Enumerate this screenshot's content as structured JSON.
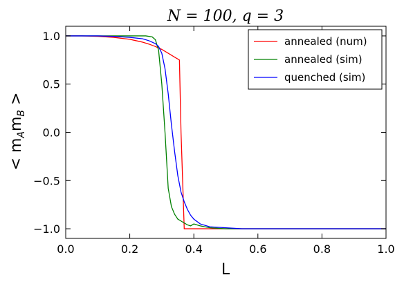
{
  "chart_data": {
    "type": "line",
    "title": "N = 100, q = 3",
    "xlabel": "L",
    "ylabel": "< m_A m_B >",
    "ylabel_parts": [
      "< m",
      "A",
      "m",
      "B",
      " >"
    ],
    "xlim": [
      0.0,
      1.0
    ],
    "ylim": [
      -1.1,
      1.1
    ],
    "xticks": [
      0.0,
      0.2,
      0.4,
      0.6,
      0.8,
      1.0
    ],
    "xtick_labels": [
      "0.0",
      "0.2",
      "0.4",
      "0.6",
      "0.8",
      "1.0"
    ],
    "yticks": [
      -1.0,
      -0.5,
      0.0,
      0.5,
      1.0
    ],
    "ytick_labels": [
      "−1.0",
      "−0.5",
      "0.0",
      "0.5",
      "1.0"
    ],
    "grid": false,
    "legend_position": "top-right",
    "series": [
      {
        "name": "annealed (num)",
        "color": "#ff0000",
        "x": [
          0.0,
          0.05,
          0.1,
          0.15,
          0.2,
          0.22,
          0.24,
          0.26,
          0.28,
          0.3,
          0.32,
          0.34,
          0.35,
          0.355,
          0.36,
          0.365,
          0.37,
          0.4,
          0.5,
          0.6,
          0.8,
          1.0
        ],
        "y": [
          1.0,
          1.0,
          0.995,
          0.985,
          0.965,
          0.95,
          0.935,
          0.915,
          0.89,
          0.86,
          0.82,
          0.78,
          0.76,
          0.75,
          0.0,
          -0.5,
          -1.0,
          -1.0,
          -1.0,
          -1.0,
          -1.0,
          -1.0
        ]
      },
      {
        "name": "annealed (sim)",
        "color": "#008000",
        "x": [
          0.0,
          0.05,
          0.1,
          0.15,
          0.2,
          0.25,
          0.27,
          0.28,
          0.29,
          0.3,
          0.31,
          0.32,
          0.33,
          0.34,
          0.35,
          0.36,
          0.37,
          0.38,
          0.39,
          0.4,
          0.42,
          0.45,
          0.5,
          0.6,
          0.8,
          1.0
        ],
        "y": [
          1.0,
          1.0,
          1.0,
          1.0,
          1.0,
          1.0,
          0.99,
          0.96,
          0.85,
          0.5,
          0.0,
          -0.58,
          -0.77,
          -0.85,
          -0.9,
          -0.92,
          -0.94,
          -0.96,
          -0.97,
          -0.95,
          -0.97,
          -0.99,
          -1.0,
          -1.0,
          -1.0,
          -1.0
        ]
      },
      {
        "name": "quenched (sim)",
        "color": "#0000ff",
        "x": [
          0.0,
          0.05,
          0.1,
          0.15,
          0.2,
          0.24,
          0.26,
          0.28,
          0.29,
          0.3,
          0.31,
          0.32,
          0.33,
          0.34,
          0.35,
          0.36,
          0.37,
          0.38,
          0.39,
          0.4,
          0.42,
          0.45,
          0.5,
          0.55,
          0.6,
          0.8,
          1.0
        ],
        "y": [
          1.0,
          1.0,
          1.0,
          0.995,
          0.985,
          0.97,
          0.95,
          0.92,
          0.89,
          0.82,
          0.66,
          0.4,
          0.08,
          -0.2,
          -0.45,
          -0.62,
          -0.72,
          -0.8,
          -0.86,
          -0.9,
          -0.95,
          -0.98,
          -0.99,
          -1.0,
          -1.0,
          -1.0,
          -1.0
        ]
      }
    ]
  }
}
